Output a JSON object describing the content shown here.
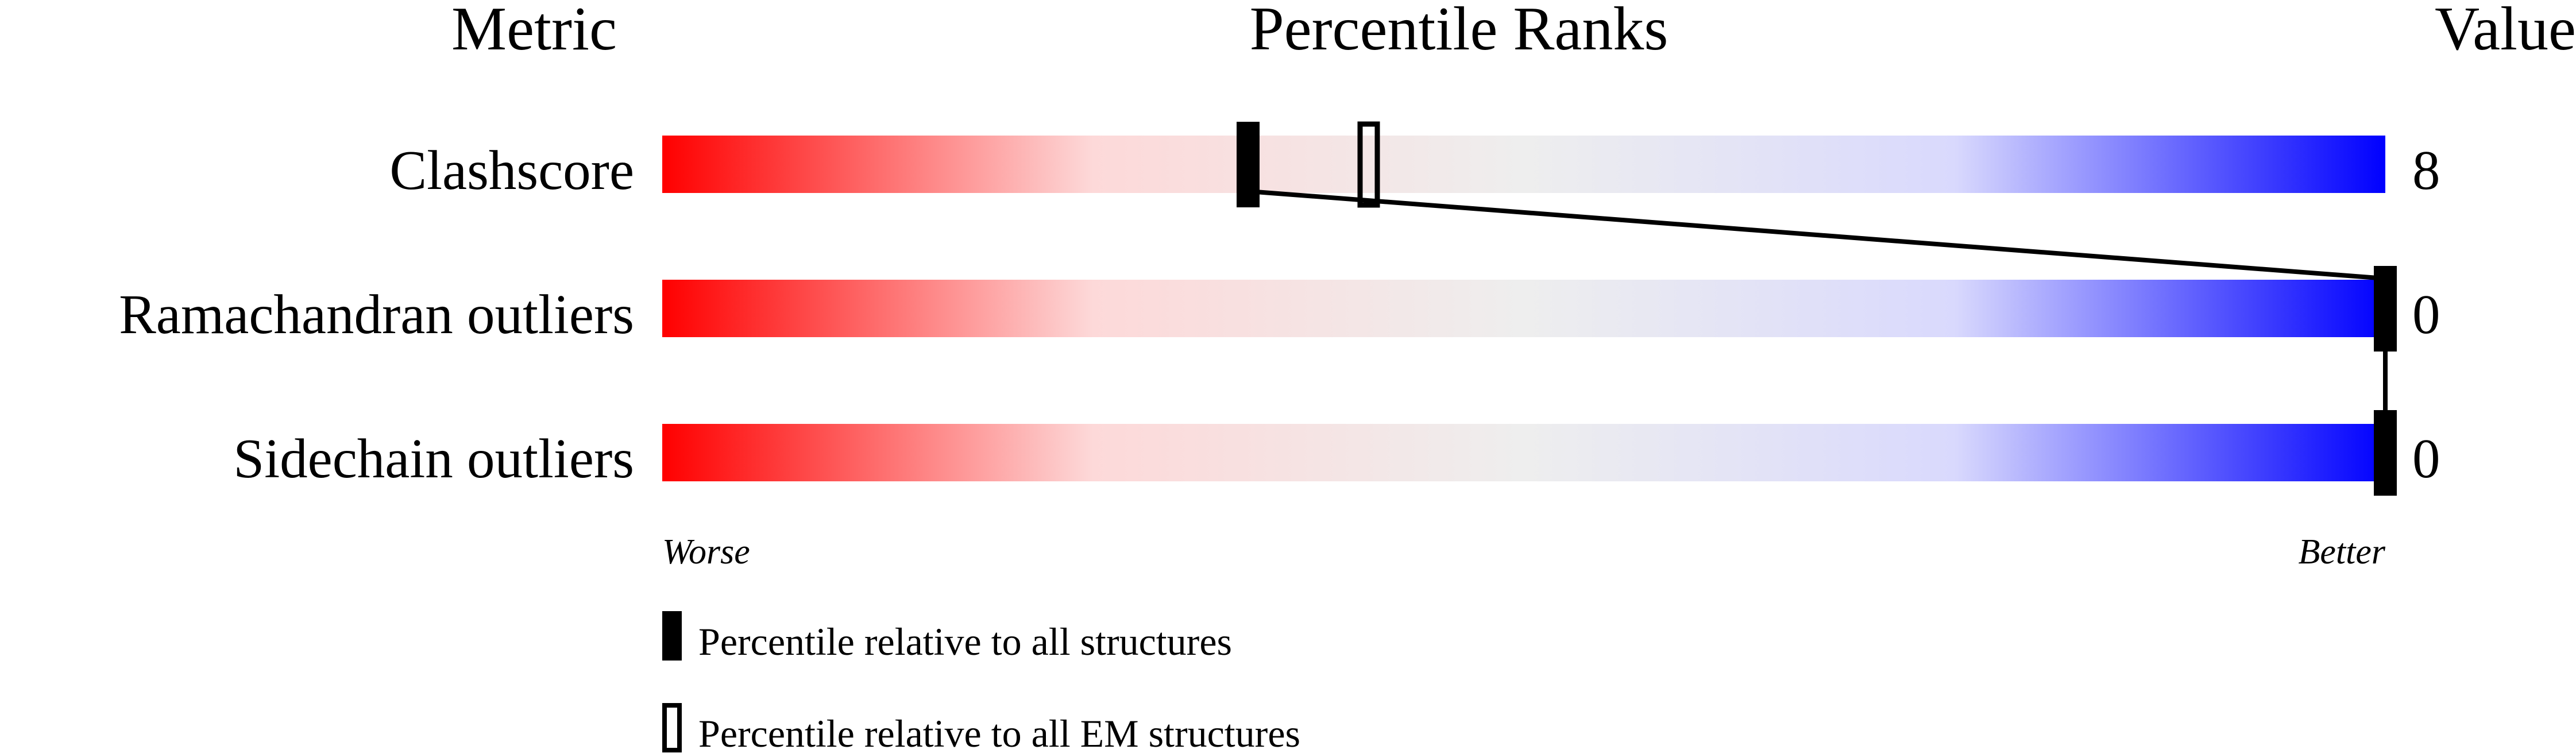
{
  "chart_data": {
    "type": "bar",
    "headers": {
      "metric": "Metric",
      "percentile": "Percentile Ranks",
      "value": "Value"
    },
    "xlim": [
      0,
      100
    ],
    "gradient_colors": [
      "#ff0000",
      "#fdd9d9",
      "#eeeeee",
      "#d9d9fd",
      "#0000ff"
    ],
    "metrics": [
      {
        "label": "Clashscore",
        "value": "8",
        "percentile_all": 34,
        "percentile_em": 41
      },
      {
        "label": "Ramachandran outliers",
        "value": "0",
        "percentile_all": 100,
        "percentile_em": null
      },
      {
        "label": "Sidechain outliers",
        "value": "0",
        "percentile_all": 100,
        "percentile_em": null
      }
    ],
    "axis": {
      "left": "Worse",
      "right": "Better"
    },
    "legend": {
      "all": "Percentile relative to all structures",
      "em": "Percentile relative to all EM structures"
    }
  }
}
